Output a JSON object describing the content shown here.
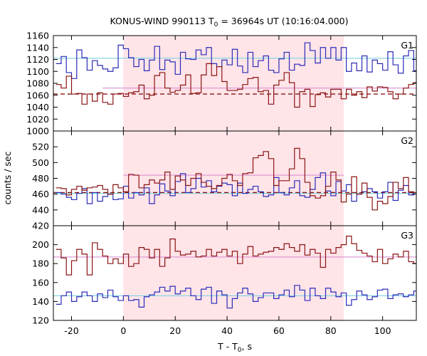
{
  "chart_data": {
    "type": "line",
    "title": "KONUS-WIND 990113 T",
    "title_sub": "0",
    "title_rest": " = 36964s UT (10:16:04.000)",
    "xlabel": "T - T",
    "xlabel_sub": "0",
    "xlabel_rest": ", s",
    "ylabel": "counts / sec",
    "x_range": [
      -27,
      113
    ],
    "x_ticks": [
      -20,
      0,
      20,
      40,
      60,
      80,
      100
    ],
    "x_tick_labels": [
      "-20",
      "0",
      "20",
      "40",
      "60",
      "80",
      "100"
    ],
    "highlight_interval": [
      0,
      85
    ],
    "bin_start": -26,
    "bin_width": 2,
    "colors": {
      "series_a": "#2b2bb8",
      "series_b": "#8b1414",
      "bg_a": "#7fd3df",
      "bg_b": "#d990d2",
      "bg_b_dashed": "#8b1414",
      "highlight": "#ffe4e8"
    },
    "panels": [
      {
        "label": "G1",
        "ylim": [
          1000,
          1160
        ],
        "y_ticks": [
          1000,
          1020,
          1040,
          1060,
          1080,
          1100,
          1120,
          1140,
          1160
        ],
        "y_tick_labels": [
          "1000",
          "1020",
          "1040",
          "1060",
          "1080",
          "1100",
          "1120",
          "1140",
          "1160"
        ],
        "bg_a": 1122,
        "bg_b": 1072,
        "bg_b_dashed": 1062,
        "bg_b_range": [
          -8,
          113
        ],
        "bg_b_dashed_range": [
          -27,
          113
        ],
        "series": [
          {
            "role": "a",
            "values": [
              1113,
              1125,
              1098,
              1088,
              1136,
              1123,
              1102,
              1118,
              1110,
              1104,
              1100,
              1106,
              1144,
              1138,
              1123,
              1108,
              1120,
              1101,
              1119,
              1142,
              1103,
              1119,
              1116,
              1095,
              1132,
              1121,
              1120,
              1136,
              1128,
              1140,
              1113,
              1108,
              1119,
              1111,
              1137,
              1109,
              1098,
              1132,
              1108,
              1118,
              1126,
              1102,
              1098,
              1121,
              1132,
              1102,
              1112,
              1110,
              1148,
              1135,
              1114,
              1140,
              1122,
              1140,
              1119,
              1140,
              1100,
              1114,
              1101,
              1126,
              1099,
              1119,
              1113,
              1102,
              1133,
              1111,
              1097,
              1126,
              1135,
              1101
            ]
          },
          {
            "role": "b",
            "values": [
              1078,
              1072,
              1092,
              1062,
              1063,
              1045,
              1062,
              1050,
              1064,
              1048,
              1045,
              1062,
              1063,
              1058,
              1064,
              1066,
              1077,
              1054,
              1060,
              1093,
              1098,
              1072,
              1065,
              1068,
              1077,
              1094,
              1063,
              1064,
              1094,
              1113,
              1093,
              1108,
              1083,
              1068,
              1068,
              1070,
              1078,
              1088,
              1090,
              1066,
              1068,
              1045,
              1077,
              1085,
              1098,
              1081,
              1040,
              1066,
              1070,
              1041,
              1061,
              1064,
              1057,
              1070,
              1070,
              1054,
              1070,
              1060,
              1066,
              1056,
              1074,
              1067,
              1074,
              1073,
              1066,
              1054,
              1062,
              1072,
              1078,
              1081
            ]
          }
        ]
      },
      {
        "label": "G2",
        "ylim": [
          420,
          540
        ],
        "y_ticks": [
          420,
          440,
          460,
          480,
          500,
          520
        ],
        "y_tick_labels": [
          "420",
          "440",
          "460",
          "480",
          "500",
          "520"
        ],
        "bg_a": 461,
        "bg_b": 484,
        "bg_b_dashed": 462,
        "bg_b_range": [
          0,
          85
        ],
        "bg_b_dashed_range": [
          -27,
          113
        ],
        "series": [
          {
            "role": "a",
            "values": [
              462,
              460,
              456,
              453,
              461,
              467,
              448,
              462,
              451,
              457,
              460,
              453,
              454,
              470,
              455,
              462,
              459,
              468,
              448,
              459,
              473,
              464,
              458,
              476,
              486,
              462,
              467,
              480,
              469,
              477,
              463,
              470,
              474,
              472,
              458,
              474,
              461,
              466,
              470,
              463,
              457,
              459,
              481,
              462,
              459,
              468,
              477,
              458,
              456,
              466,
              481,
              487,
              464,
              458,
              476,
              464,
              472,
              451,
              460,
              463,
              467,
              463,
              455,
              463,
              475,
              452,
              465,
              471,
              459,
              462
            ]
          },
          {
            "role": "b",
            "values": [
              468,
              467,
              459,
              466,
              470,
              465,
              468,
              469,
              471,
              466,
              460,
              472,
              468,
              463,
              485,
              484,
              468,
              472,
              478,
              474,
              478,
              488,
              466,
              483,
              478,
              471,
              480,
              486,
              475,
              470,
              467,
              471,
              480,
              485,
              477,
              471,
              486,
              487,
              506,
              509,
              514,
              505,
              471,
              477,
              477,
              492,
              518,
              505,
              475,
              458,
              455,
              458,
              470,
              488,
              478,
              450,
              460,
              482,
              460,
              474,
              456,
              440,
              451,
              448,
              457,
              475,
              467,
              481,
              463,
              462
            ]
          }
        ]
      },
      {
        "label": "G3",
        "ylim": [
          120,
          220
        ],
        "y_ticks": [
          120,
          140,
          160,
          180,
          200
        ],
        "y_tick_labels": [
          "120",
          "140",
          "160",
          "180",
          "200"
        ],
        "bg_a": 146,
        "bg_b": 187,
        "bg_b_dashed": null,
        "bg_b_range": [
          -27,
          113
        ],
        "bg_b_dashed_range": null,
        "series": [
          {
            "role": "a",
            "values": [
              137,
              146,
              150,
              140,
              145,
              150,
              146,
              140,
              148,
              144,
              152,
              145,
              141,
              146,
              141,
              142,
              134,
              145,
              147,
              150,
              155,
              151,
              156,
              148,
              151,
              154,
              146,
              142,
              153,
              155,
              138,
              151,
              147,
              133,
              143,
              149,
              154,
              148,
              140,
              144,
              149,
              149,
              143,
              147,
              152,
              145,
              157,
              152,
              141,
              154,
              146,
              143,
              154,
              150,
              145,
              149,
              136,
              142,
              151,
              147,
              142,
              145,
              152,
              153,
              143,
              147,
              148,
              145,
              147,
              151
            ]
          },
          {
            "role": "b",
            "values": [
              195,
              186,
              168,
              183,
              195,
              190,
              168,
              202,
              195,
              188,
              180,
              185,
              180,
              190,
              177,
              180,
              197,
              195,
              186,
              195,
              177,
              186,
              206,
              193,
              189,
              190,
              193,
              187,
              188,
              195,
              188,
              192,
              195,
              188,
              193,
              180,
              190,
              198,
              188,
              190,
              192,
              193,
              197,
              195,
              201,
              197,
              193,
              200,
              189,
              195,
              191,
              176,
              195,
              191,
              197,
              200,
              209,
              201,
              194,
              191,
              188,
              182,
              195,
              180,
              185,
              190,
              187,
              193,
              182,
              180
            ]
          }
        ]
      }
    ]
  }
}
